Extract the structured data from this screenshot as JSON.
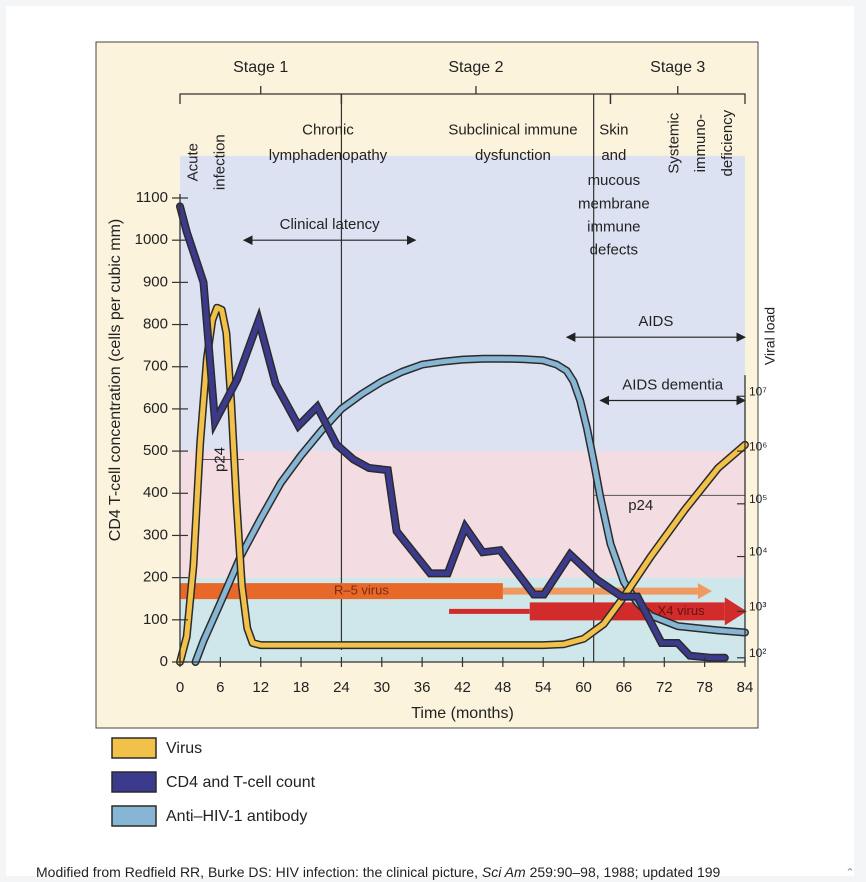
{
  "chart_data": {
    "type": "line",
    "title": "",
    "xlabel": "Time (months)",
    "ylabel": "CD4 T-cell concentration (cells per cubic mm)",
    "y2label": "Viral load",
    "xlim": [
      0,
      84
    ],
    "ylim": [
      0,
      1100
    ],
    "x_ticks": [
      0,
      6,
      12,
      18,
      24,
      30,
      36,
      42,
      48,
      54,
      60,
      66,
      72,
      78,
      84
    ],
    "x_tick_labels": [
      "0",
      "6",
      "12",
      "18",
      "24",
      "30",
      "36",
      "42",
      "48",
      "54",
      "60",
      "66",
      "72",
      "78",
      "84"
    ],
    "y_ticks": [
      0,
      100,
      200,
      300,
      400,
      500,
      600,
      700,
      800,
      900,
      1000,
      1100
    ],
    "y_tick_labels": [
      "0",
      "100",
      "200",
      "300",
      "400",
      "500",
      "600",
      "700",
      "800",
      "900",
      "1000",
      "1100"
    ],
    "y2_ticks": [
      {
        "label": "10²",
        "y": 10
      },
      {
        "label": "10³",
        "y": 120
      },
      {
        "label": "10⁴",
        "y": 250
      },
      {
        "label": "10⁵",
        "y": 375
      },
      {
        "label": "10⁶",
        "y": 500
      },
      {
        "label": "10⁷",
        "y": 630
      }
    ],
    "stages": [
      {
        "label": "Stage 1",
        "x_start": 0,
        "x_end": 24
      },
      {
        "label": "Stage 2",
        "x_start": 24,
        "x_end": 64
      },
      {
        "label": "Stage 3",
        "x_start": 64,
        "x_end": 84
      }
    ],
    "phase_labels": [
      {
        "text": "Acute",
        "x": 2,
        "y": 1185,
        "rotated": true
      },
      {
        "text": "infection",
        "x": 6,
        "y": 1185,
        "rotated": true
      },
      {
        "text": "Chronic",
        "x": 22,
        "y": 1260
      },
      {
        "text": "lymphadenopathy",
        "x": 22,
        "y": 1200
      },
      {
        "text": "Subclinical immune",
        "x": 49.5,
        "y": 1260
      },
      {
        "text": "dysfunction",
        "x": 49.5,
        "y": 1200
      },
      {
        "text": "Skin",
        "x": 64.5,
        "y": 1260
      },
      {
        "text": "and",
        "x": 64.5,
        "y": 1200
      },
      {
        "text": "mucous",
        "x": 64.5,
        "y": 1140
      },
      {
        "text": "membrane",
        "x": 64.5,
        "y": 1085
      },
      {
        "text": "immune",
        "x": 64.5,
        "y": 1030
      },
      {
        "text": "defects",
        "x": 64.5,
        "y": 975
      },
      {
        "text": "Systemic",
        "x": 73.5,
        "y": 1230,
        "rotated": true
      },
      {
        "text": "immuno-",
        "x": 77.5,
        "y": 1230,
        "rotated": true
      },
      {
        "text": "deficiency",
        "x": 81.5,
        "y": 1230,
        "rotated": true
      }
    ],
    "annotations": [
      {
        "text": "Clinical latency",
        "x_start": 9.5,
        "x_end": 35,
        "y": 1000
      },
      {
        "text": "AIDS",
        "x_start": 57.5,
        "x_end": 84,
        "y": 770
      },
      {
        "text": "AIDS dementia",
        "x_start": 62.5,
        "x_end": 84,
        "y": 620
      },
      {
        "text": "p24",
        "x": 6,
        "y": 480,
        "rotated": true
      },
      {
        "text": "p24",
        "x": 68.5,
        "y": 370
      }
    ],
    "threshold_bands": [
      {
        "y_from": 500,
        "y_to": 1200,
        "color": "#dde2f3"
      },
      {
        "y_from": 200,
        "y_to": 500,
        "color": "#f3dde3"
      },
      {
        "y_from": 0,
        "y_to": 200,
        "color": "#cfe6ea"
      }
    ],
    "variant_arrows": [
      {
        "label": "R–5 virus",
        "x_start": 0,
        "x_end": 48,
        "x_fade_end": 77,
        "y": 168,
        "color": "#e8682a",
        "fade_color": "#ee9a60"
      },
      {
        "label": "X4 virus",
        "x_start": 40,
        "x_end": 81,
        "y": 120,
        "color": "#d22b2b"
      }
    ],
    "series": [
      {
        "name": "Virus",
        "color": "#f2c14a",
        "x": [
          0,
          1,
          2,
          3,
          4,
          4.8,
          5.5,
          6.2,
          6.9,
          7.6,
          8.4,
          9.2,
          10,
          10.8,
          12,
          14,
          24,
          36,
          48,
          54,
          57,
          60,
          63,
          66,
          70,
          75,
          80,
          84
        ],
        "values": [
          0,
          60,
          230,
          520,
          720,
          810,
          840,
          835,
          780,
          620,
          380,
          180,
          80,
          45,
          40,
          40,
          40,
          40,
          40,
          40,
          42,
          55,
          90,
          155,
          250,
          360,
          460,
          515
        ]
      },
      {
        "name": "CD4 and T-cell count",
        "color": "#3b3a8c",
        "x": [
          0,
          1,
          3.5,
          5.2,
          8.5,
          11.7,
          14.2,
          17.6,
          20.4,
          23.3,
          25.8,
          28.1,
          30.9,
          32.2,
          37.2,
          39.8,
          42.4,
          45,
          47.6,
          52.6,
          54.1,
          58,
          62,
          65.7,
          68,
          71.6,
          74,
          75.8,
          79,
          81
        ],
        "values": [
          1080,
          1020,
          900,
          570,
          670,
          810,
          660,
          560,
          605,
          515,
          480,
          460,
          455,
          310,
          210,
          210,
          320,
          260,
          265,
          160,
          160,
          255,
          195,
          155,
          155,
          45,
          45,
          15,
          10,
          10
        ]
      },
      {
        "name": "Anti–HIV-1 antibody",
        "color": "#86b6d4",
        "x": [
          2.3,
          3.5,
          6,
          9,
          12,
          15,
          18,
          21,
          24,
          27,
          30,
          33,
          36,
          39,
          42,
          45,
          48,
          51,
          54,
          56,
          57.5,
          58.5,
          59.5,
          60.5,
          61.5,
          62.5,
          64,
          66,
          68,
          70,
          74,
          80,
          84
        ],
        "values": [
          0,
          50,
          140,
          250,
          340,
          425,
          490,
          548,
          600,
          635,
          665,
          688,
          705,
          712,
          717,
          719,
          719,
          718,
          715,
          705,
          690,
          665,
          620,
          555,
          475,
          390,
          280,
          190,
          140,
          110,
          85,
          75,
          70
        ]
      }
    ],
    "legend": [
      {
        "label": "Virus",
        "color": "#f2c14a"
      },
      {
        "label": "CD4 and T-cell count",
        "color": "#3b3a8c"
      },
      {
        "label": "Anti–HIV-1 antibody",
        "color": "#86b6d4"
      }
    ]
  },
  "caption": {
    "prefix": "Modified from Redfield RR, Burke DS: HIV infection: the clinical picture, ",
    "journal": "Sci Am",
    "suffix": " 259:90–98, 1988; updated 199"
  },
  "scroll_icon": "chevron-up-icon",
  "colors": {
    "frame_bg": "#fbf3dc",
    "axis": "#333333",
    "outline": "#2b2b2b"
  }
}
